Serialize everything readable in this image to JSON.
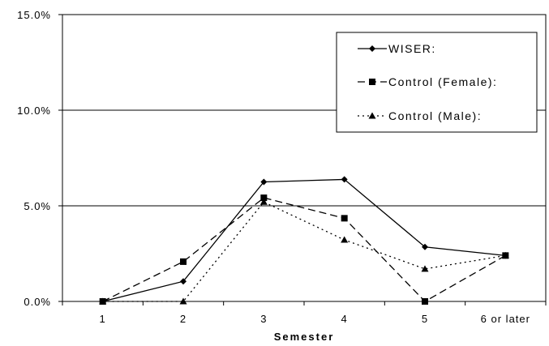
{
  "chart_data": {
    "type": "line",
    "title": "",
    "xlabel": "Semester",
    "ylabel": "",
    "categories": [
      "1",
      "2",
      "3",
      "4",
      "5",
      "6 or later"
    ],
    "ylim": [
      0,
      15
    ],
    "yticks": [
      "0.0%",
      "5.0%",
      "10.0%",
      "15.0%"
    ],
    "ytick_values": [
      0,
      5,
      10,
      15
    ],
    "grid": "horizontal major lines",
    "legend_position": "top-right",
    "series": [
      {
        "name": "WISER:",
        "values": [
          0.0,
          1.05,
          6.25,
          6.38,
          2.85,
          2.4
        ],
        "line": "solid",
        "marker": "diamond",
        "color": "#000000"
      },
      {
        "name": "Control (Female):",
        "values": [
          0.0,
          2.08,
          5.42,
          4.35,
          0.0,
          2.4
        ],
        "line": "dashed",
        "marker": "square",
        "color": "#000000"
      },
      {
        "name": "Control (Male):",
        "values": [
          0.0,
          0.0,
          5.2,
          3.22,
          1.7,
          2.4
        ],
        "line": "dotted",
        "marker": "triangle",
        "color": "#000000"
      }
    ]
  }
}
